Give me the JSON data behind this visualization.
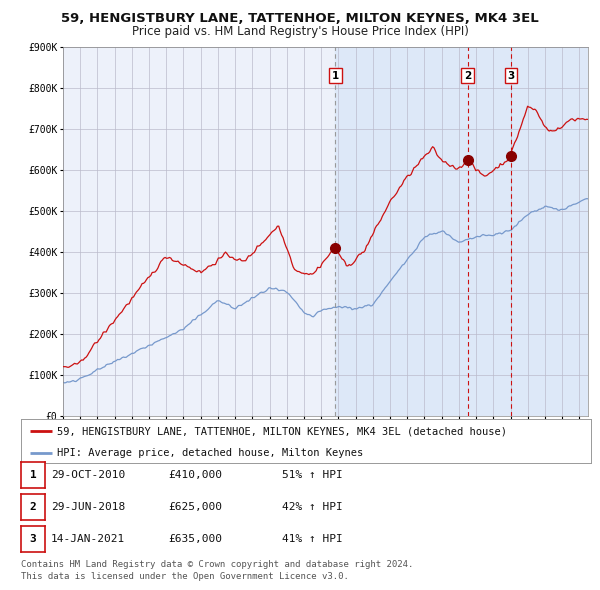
{
  "title": "59, HENGISTBURY LANE, TATTENHOE, MILTON KEYNES, MK4 3EL",
  "subtitle": "Price paid vs. HM Land Registry's House Price Index (HPI)",
  "ylim": [
    0,
    900000
  ],
  "yticks": [
    0,
    100000,
    200000,
    300000,
    400000,
    500000,
    600000,
    700000,
    800000,
    900000
  ],
  "ytick_labels": [
    "£0",
    "£100K",
    "£200K",
    "£300K",
    "£400K",
    "£500K",
    "£600K",
    "£700K",
    "£800K",
    "£900K"
  ],
  "background_color": "#ffffff",
  "plot_bg_color": "#dde8f8",
  "plot_bg_before_color": "#f0f0f8",
  "grid_color": "#bbbbcc",
  "red_line_color": "#cc1111",
  "blue_line_color": "#7799cc",
  "marker_color": "#880000",
  "dashed_gray": "#999999",
  "dashed_red": "#cc1111",
  "sale1_year": 2010.83,
  "sale1_price": 410000,
  "sale2_year": 2018.5,
  "sale2_price": 625000,
  "sale3_year": 2021.04,
  "sale3_price": 635000,
  "legend_red": "59, HENGISTBURY LANE, TATTENHOE, MILTON KEYNES, MK4 3EL (detached house)",
  "legend_blue": "HPI: Average price, detached house, Milton Keynes",
  "table_rows": [
    [
      "1",
      "29-OCT-2010",
      "£410,000",
      "51% ↑ HPI"
    ],
    [
      "2",
      "29-JUN-2018",
      "£625,000",
      "42% ↑ HPI"
    ],
    [
      "3",
      "14-JAN-2021",
      "£635,000",
      "41% ↑ HPI"
    ]
  ],
  "footer_line1": "Contains HM Land Registry data © Crown copyright and database right 2024.",
  "footer_line2": "This data is licensed under the Open Government Licence v3.0.",
  "title_fontsize": 9.5,
  "subtitle_fontsize": 8.5,
  "tick_fontsize": 7.0,
  "legend_fontsize": 7.5,
  "table_fontsize": 8.0,
  "footer_fontsize": 6.5,
  "label_fontsize": 7.5
}
